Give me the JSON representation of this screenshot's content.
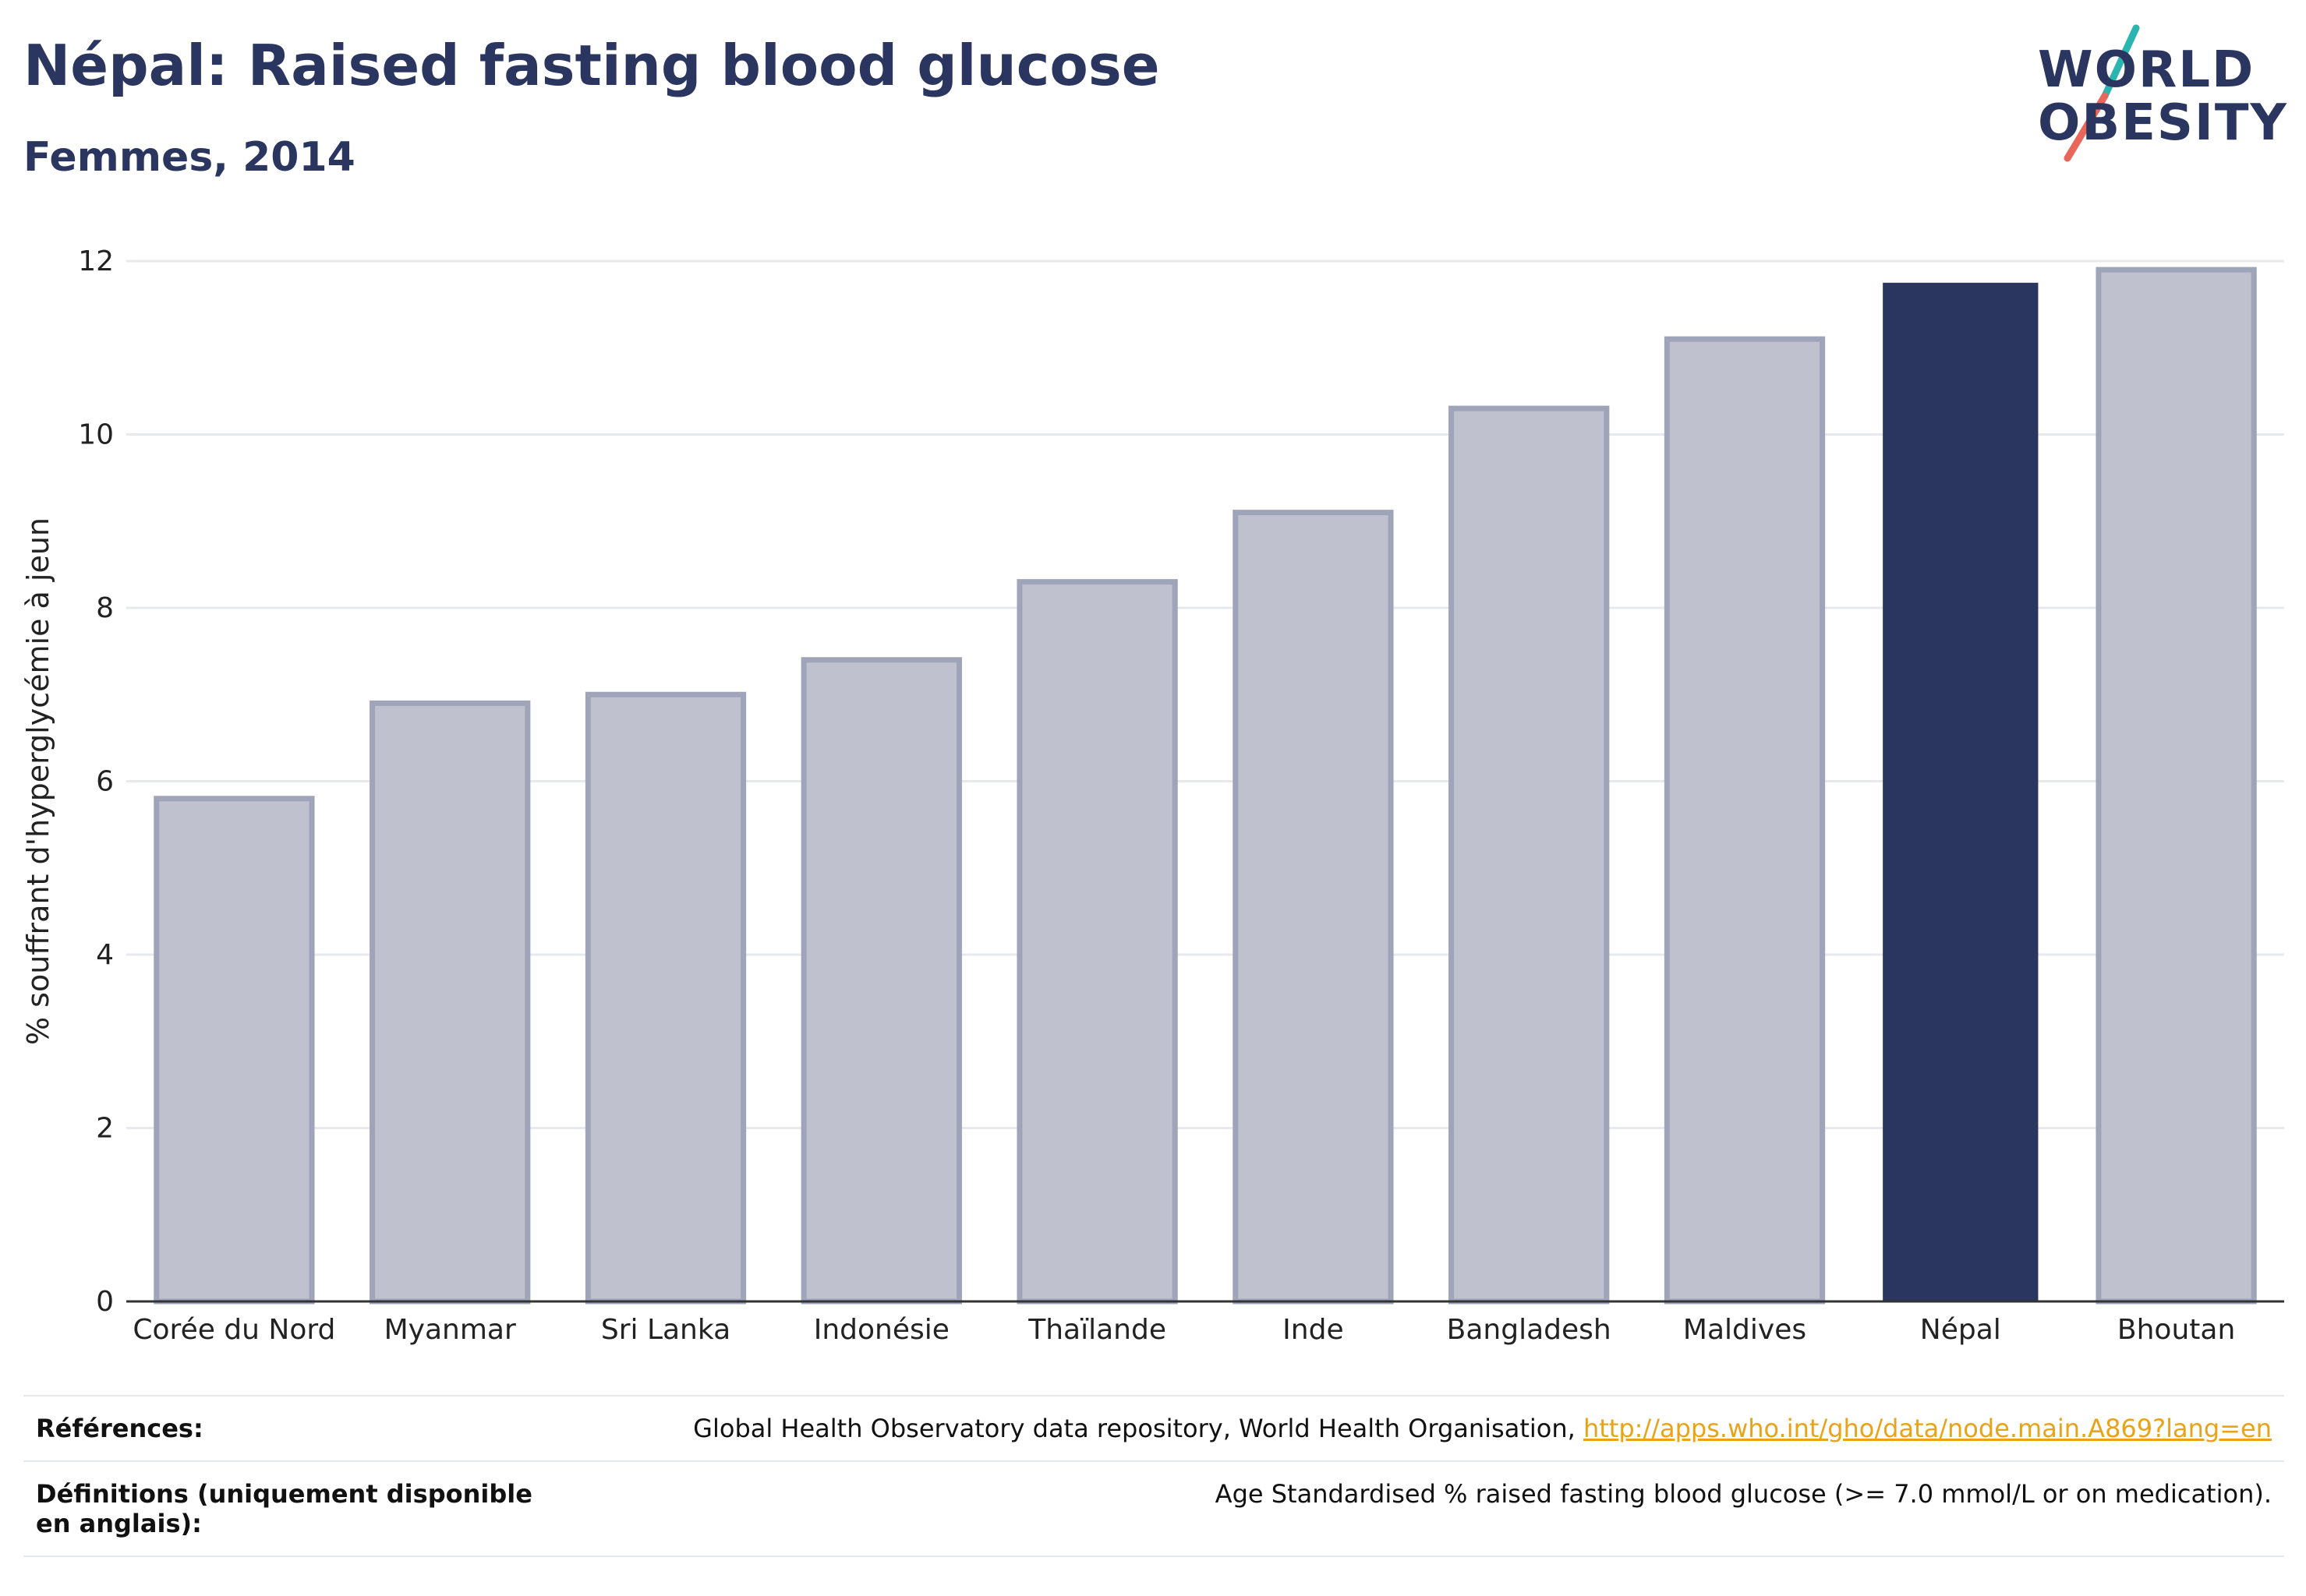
{
  "header": {
    "title": "Népal: Raised fasting blood glucose",
    "subtitle": "Femmes, 2014"
  },
  "logo": {
    "line1": "WORLD",
    "line2": "OBESITY",
    "colors": {
      "text": "#2a3560",
      "slash_top": "#2bb5b0",
      "slash_bottom": "#e8675a"
    }
  },
  "chart_data": {
    "type": "bar",
    "title": "",
    "xlabel": "",
    "ylabel": "% souffrant d'hyperglycémie à jeun",
    "categories": [
      "Corée du Nord",
      "Myanmar",
      "Sri Lanka",
      "Indonésie",
      "Thaïlande",
      "Inde",
      "Bangladesh",
      "Maldives",
      "Népal",
      "Bhoutan"
    ],
    "values": [
      5.8,
      6.9,
      7.0,
      7.4,
      8.3,
      9.1,
      10.3,
      11.1,
      11.75,
      11.9
    ],
    "highlight": "Népal",
    "ylim": [
      0,
      12
    ],
    "yticks": [
      0,
      2,
      4,
      6,
      8,
      10,
      12
    ],
    "grid": true,
    "colors": {
      "bar": "#bfc2ce",
      "bar_edge": "#9fa4b8",
      "highlight": "#2a3560",
      "grid": "#e7e9ef",
      "axis": "#333333"
    }
  },
  "footer": {
    "references_label": "Références:",
    "references_text": "Global Health Observatory data repository, World Health Organisation,",
    "references_link": "http://apps.who.int/gho/data/node.main.A869?lang=en",
    "definitions_label": "Définitions (uniquement disponible en anglais):",
    "definitions_text": "Age Standardised % raised fasting blood glucose (>= 7.0 mmol/L or on medication)."
  }
}
